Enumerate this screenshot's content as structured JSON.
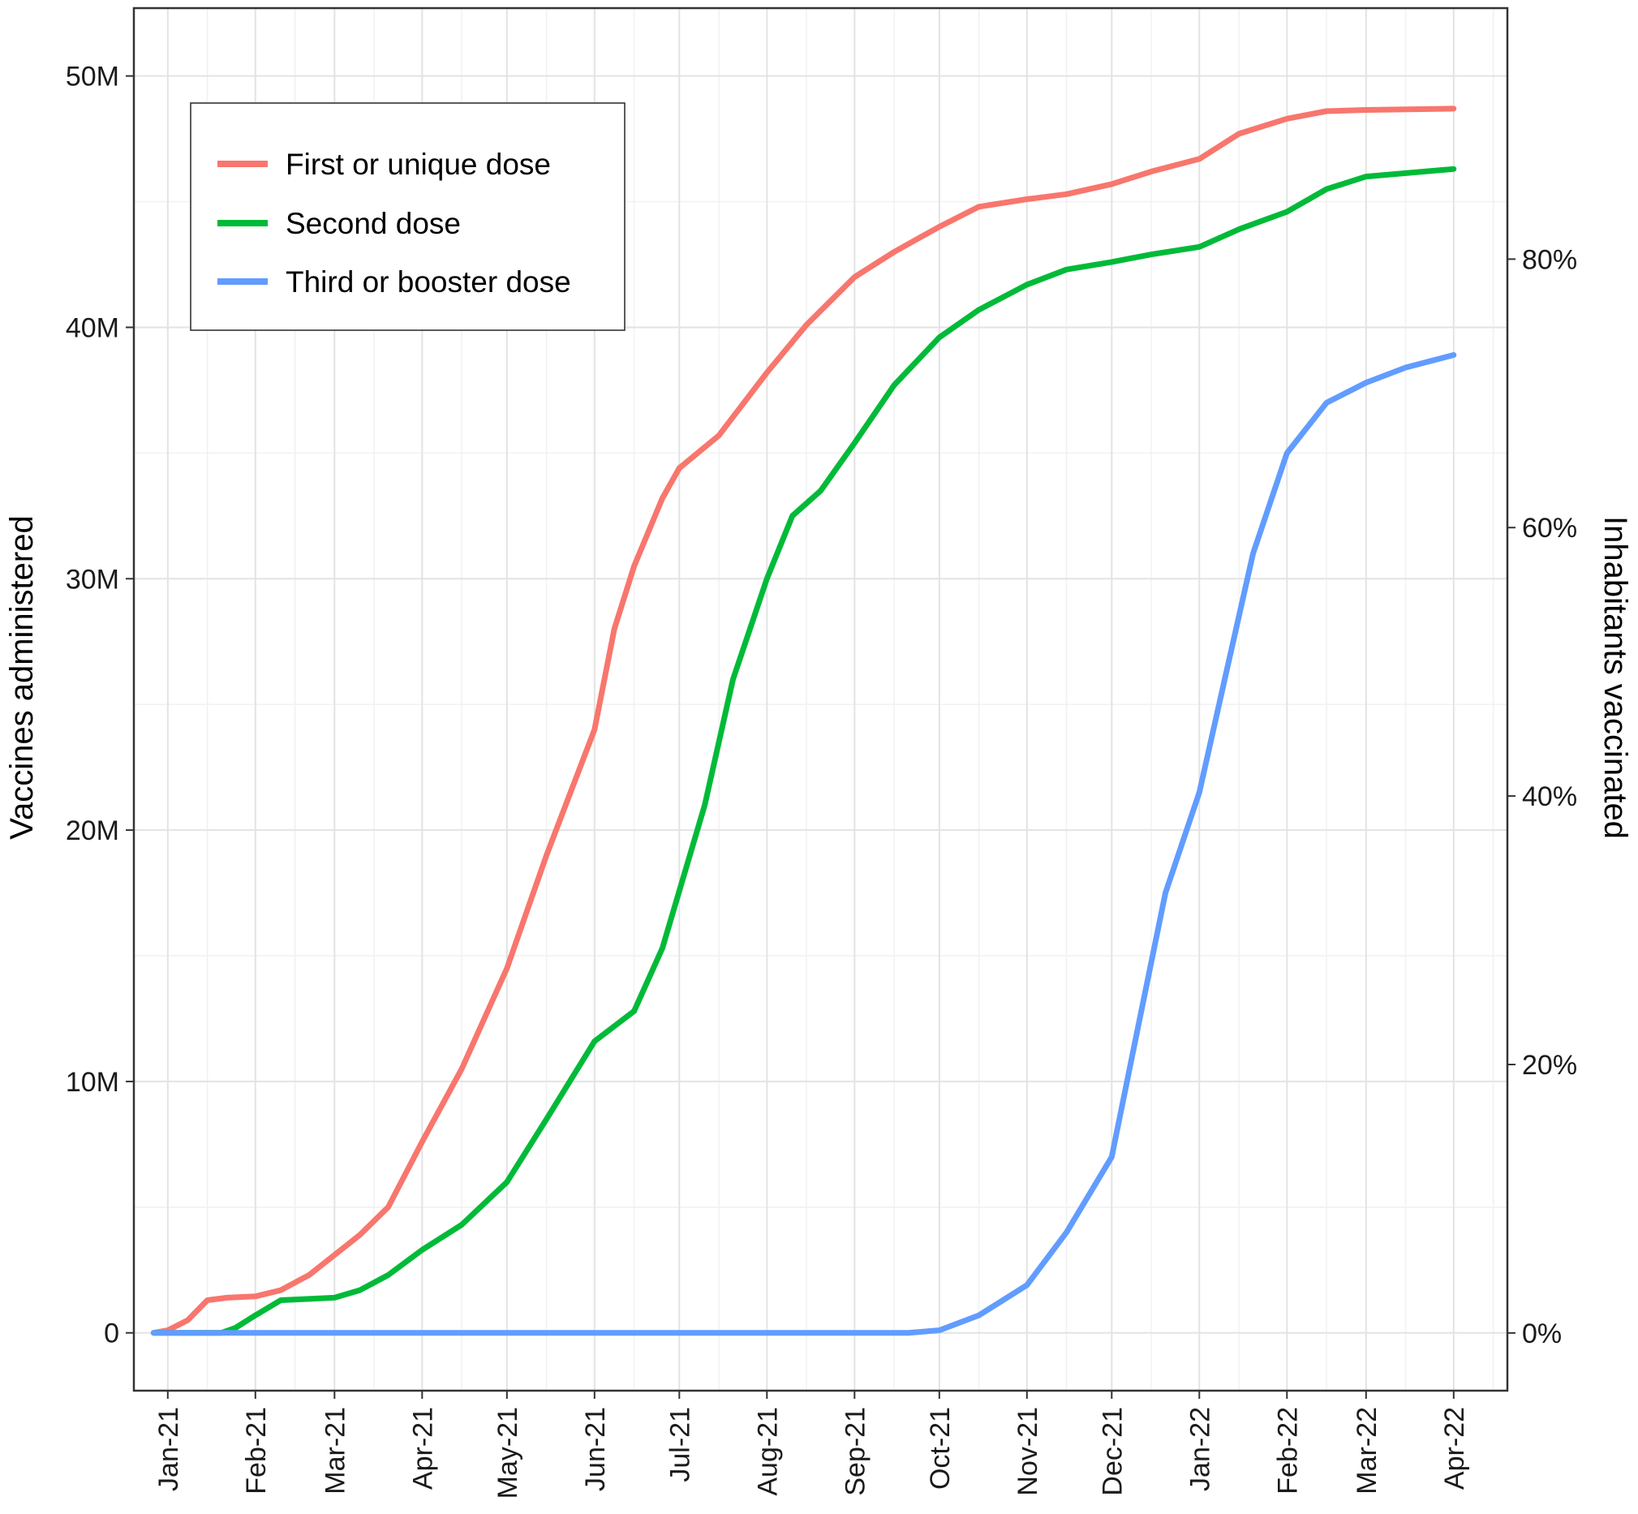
{
  "chart_data": {
    "type": "line",
    "title": "",
    "xlabel": "",
    "ylabel": "Vaccines administered",
    "y2label": "Inhabitants vaccinated",
    "x_tick_labels": [
      "Jan-21",
      "Feb-21",
      "Mar-21",
      "Apr-21",
      "May-21",
      "Jun-21",
      "Jul-21",
      "Aug-21",
      "Sep-21",
      "Oct-21",
      "Nov-21",
      "Dec-21",
      "Jan-22",
      "Feb-22",
      "Mar-22",
      "Apr-22"
    ],
    "x_range": [
      "2020-12-20",
      "2022-04-20"
    ],
    "y_tick_labels": [
      "0",
      "10M",
      "20M",
      "30M",
      "40M",
      "50M"
    ],
    "y_ticks": [
      0,
      10000000,
      20000000,
      30000000,
      40000000,
      50000000
    ],
    "ylim": [
      -2300000,
      52700000
    ],
    "y2_tick_labels": [
      "0%",
      "20%",
      "40%",
      "60%",
      "80%"
    ],
    "y2_ticks": [
      0,
      20,
      40,
      60,
      80
    ],
    "y2lim": [
      -4.3,
      98.7
    ],
    "grid": true,
    "legend_position": "top-left",
    "colors": {
      "first": "#F8766D",
      "second": "#00BA38",
      "third": "#619CFF"
    },
    "series": [
      {
        "name": "First or unique dose",
        "color": "#F8766D",
        "points": [
          [
            "2020-12-27",
            0
          ],
          [
            "2021-01-01",
            100000
          ],
          [
            "2021-01-08",
            500000
          ],
          [
            "2021-01-15",
            1300000
          ],
          [
            "2021-01-22",
            1400000
          ],
          [
            "2021-02-01",
            1450000
          ],
          [
            "2021-02-10",
            1700000
          ],
          [
            "2021-02-20",
            2300000
          ],
          [
            "2021-03-01",
            3100000
          ],
          [
            "2021-03-10",
            3900000
          ],
          [
            "2021-03-20",
            5000000
          ],
          [
            "2021-04-01",
            7600000
          ],
          [
            "2021-04-15",
            10500000
          ],
          [
            "2021-05-01",
            14500000
          ],
          [
            "2021-05-15",
            19000000
          ],
          [
            "2021-06-01",
            24000000
          ],
          [
            "2021-06-08",
            28000000
          ],
          [
            "2021-06-15",
            30500000
          ],
          [
            "2021-06-25",
            33200000
          ],
          [
            "2021-07-01",
            34400000
          ],
          [
            "2021-07-15",
            35700000
          ],
          [
            "2021-08-01",
            38200000
          ],
          [
            "2021-08-15",
            40100000
          ],
          [
            "2021-09-01",
            42000000
          ],
          [
            "2021-09-15",
            43000000
          ],
          [
            "2021-10-01",
            44000000
          ],
          [
            "2021-10-15",
            44800000
          ],
          [
            "2021-11-01",
            45100000
          ],
          [
            "2021-11-15",
            45300000
          ],
          [
            "2021-12-01",
            45700000
          ],
          [
            "2021-12-15",
            46200000
          ],
          [
            "2022-01-01",
            46700000
          ],
          [
            "2022-01-15",
            47700000
          ],
          [
            "2022-02-01",
            48300000
          ],
          [
            "2022-02-15",
            48600000
          ],
          [
            "2022-03-01",
            48650000
          ],
          [
            "2022-04-01",
            48700000
          ]
        ]
      },
      {
        "name": "Second dose",
        "color": "#00BA38",
        "points": [
          [
            "2020-12-27",
            0
          ],
          [
            "2021-01-20",
            0
          ],
          [
            "2021-01-25",
            200000
          ],
          [
            "2021-02-01",
            700000
          ],
          [
            "2021-02-10",
            1300000
          ],
          [
            "2021-02-20",
            1350000
          ],
          [
            "2021-03-01",
            1400000
          ],
          [
            "2021-03-10",
            1700000
          ],
          [
            "2021-03-20",
            2300000
          ],
          [
            "2021-04-01",
            3300000
          ],
          [
            "2021-04-15",
            4300000
          ],
          [
            "2021-05-01",
            6000000
          ],
          [
            "2021-05-15",
            8500000
          ],
          [
            "2021-06-01",
            11600000
          ],
          [
            "2021-06-15",
            12800000
          ],
          [
            "2021-06-25",
            15300000
          ],
          [
            "2021-07-10",
            21000000
          ],
          [
            "2021-07-20",
            26000000
          ],
          [
            "2021-08-01",
            30000000
          ],
          [
            "2021-08-10",
            32500000
          ],
          [
            "2021-08-20",
            33500000
          ],
          [
            "2021-09-01",
            35400000
          ],
          [
            "2021-09-15",
            37700000
          ],
          [
            "2021-10-01",
            39600000
          ],
          [
            "2021-10-15",
            40700000
          ],
          [
            "2021-11-01",
            41700000
          ],
          [
            "2021-11-15",
            42300000
          ],
          [
            "2021-12-01",
            42600000
          ],
          [
            "2021-12-15",
            42900000
          ],
          [
            "2022-01-01",
            43200000
          ],
          [
            "2022-01-15",
            43900000
          ],
          [
            "2022-02-01",
            44600000
          ],
          [
            "2022-02-15",
            45500000
          ],
          [
            "2022-03-01",
            46000000
          ],
          [
            "2022-04-01",
            46300000
          ]
        ]
      },
      {
        "name": "Third or booster dose",
        "color": "#619CFF",
        "points": [
          [
            "2020-12-27",
            0
          ],
          [
            "2021-09-20",
            0
          ],
          [
            "2021-10-01",
            100000
          ],
          [
            "2021-10-15",
            700000
          ],
          [
            "2021-11-01",
            1900000
          ],
          [
            "2021-11-15",
            4000000
          ],
          [
            "2021-12-01",
            7000000
          ],
          [
            "2021-12-10",
            12000000
          ],
          [
            "2021-12-20",
            17500000
          ],
          [
            "2022-01-01",
            21500000
          ],
          [
            "2022-01-10",
            26000000
          ],
          [
            "2022-01-20",
            31000000
          ],
          [
            "2022-02-01",
            35000000
          ],
          [
            "2022-02-15",
            37000000
          ],
          [
            "2022-03-01",
            37800000
          ],
          [
            "2022-03-15",
            38400000
          ],
          [
            "2022-04-01",
            38900000
          ]
        ]
      }
    ]
  }
}
